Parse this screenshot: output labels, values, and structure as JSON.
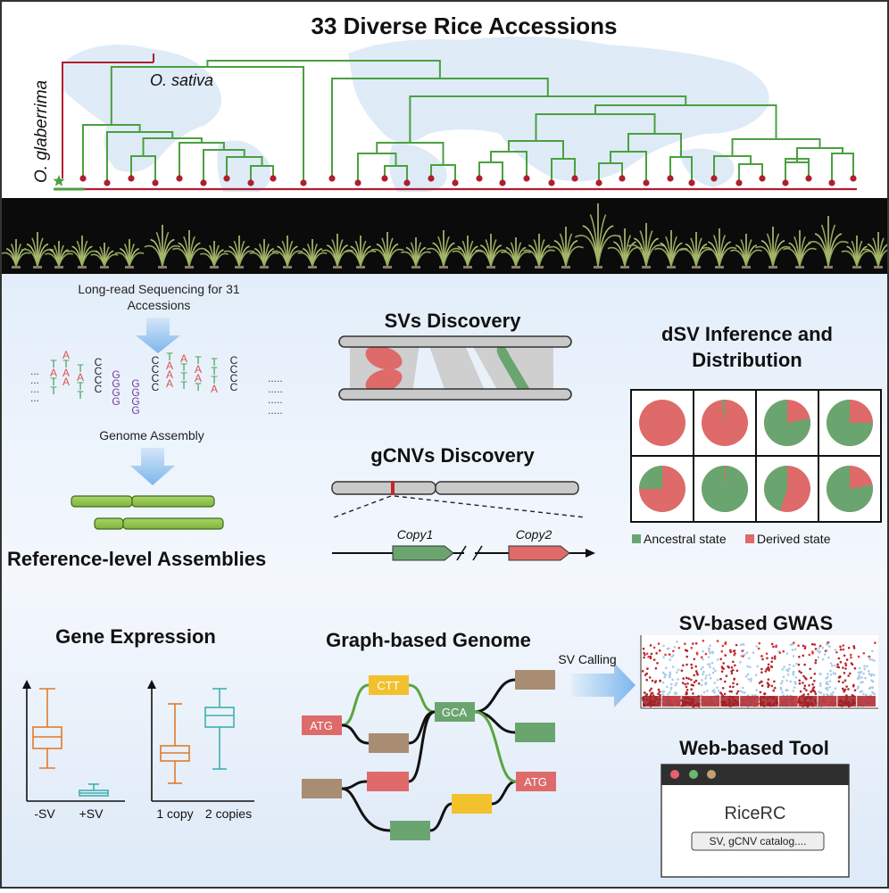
{
  "title": "33 Diverse Rice Accessions",
  "tree": {
    "outgroup_label": "O. glaberrima",
    "ingroup_label": "O. sativa"
  },
  "assembly": {
    "sequencing_line1": "Long-read Sequencing for 31",
    "sequencing_line2": "Accessions",
    "dots_left": "...",
    "dots_right": ".....",
    "columns": [
      [
        "T",
        "A",
        "T",
        "T"
      ],
      [
        "A",
        "T",
        "A",
        "A"
      ],
      [
        "T",
        "A",
        "T",
        "T"
      ],
      [
        "C",
        "C",
        "C",
        "C"
      ],
      [
        "G",
        "G",
        "G",
        "G"
      ],
      [
        "G",
        "G",
        "G",
        "G"
      ],
      [
        "C",
        "C",
        "C",
        "C"
      ],
      [
        "T",
        "A",
        "A",
        "A"
      ],
      [
        "A",
        "T",
        "T",
        "T"
      ],
      [
        "T",
        "A",
        "A",
        "T"
      ],
      [
        "T",
        "T",
        "T",
        "A"
      ],
      [
        "C",
        "C",
        "C",
        "C"
      ]
    ],
    "genome_assembly_label": "Genome Assembly",
    "reference_label": "Reference-level Assemblies"
  },
  "sv": {
    "title": "SVs Discovery"
  },
  "gcnv": {
    "title": "gCNVs Discovery",
    "copy1": "Copy1",
    "copy2": "Copy2"
  },
  "dsv": {
    "title_line1": "dSV Inference and",
    "title_line2": "Distribution",
    "legend_ancestral": "Ancestral state",
    "legend_derived": "Derived state",
    "ancestral_color": "#6aa56f",
    "derived_color": "#de6a6a",
    "ancestral_fractions": [
      0.0,
      0.02,
      0.78,
      0.75,
      0.25,
      0.99,
      0.45,
      0.78
    ]
  },
  "expression": {
    "title": "Gene Expression",
    "left_labels": [
      "-SV",
      "+SV"
    ],
    "right_labels": [
      "1 copy",
      "2 copies"
    ]
  },
  "graph": {
    "title": "Graph-based Genome",
    "nodes": [
      "ATG",
      "CTT",
      "GCA",
      "ATG"
    ]
  },
  "gwas": {
    "arrow_label": "SV Calling",
    "title": "SV-based GWAS"
  },
  "web": {
    "title": "Web-based Tool",
    "app_name": "RiceRC",
    "button_label": "SV, gCNV catalog...."
  }
}
